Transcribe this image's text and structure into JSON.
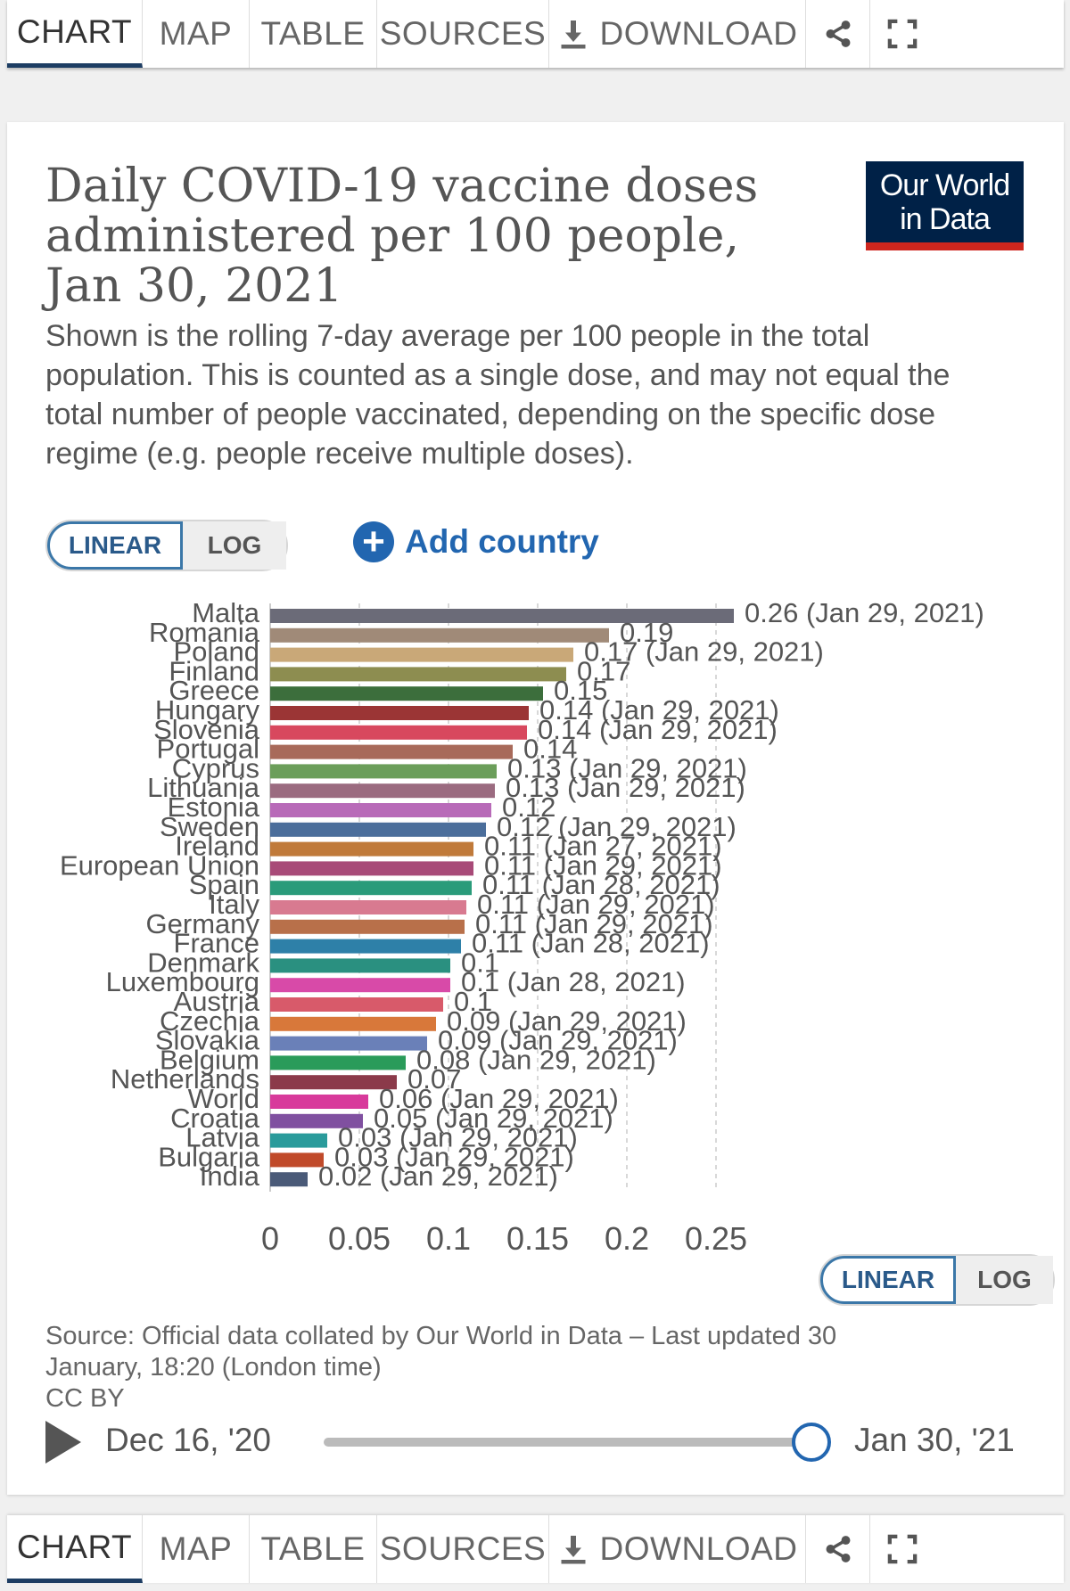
{
  "tabs": [
    {
      "label": "CHART",
      "active": true
    },
    {
      "label": "MAP",
      "active": false
    },
    {
      "label": "TABLE",
      "active": false
    },
    {
      "label": "SOURCES",
      "active": false
    },
    {
      "label": "DOWNLOAD",
      "active": false
    }
  ],
  "icons": {
    "download": "download-icon",
    "share": "share-icon",
    "fullscreen": "fullscreen-icon",
    "play": "play-icon",
    "add": "plus-circle-icon"
  },
  "title": "Daily COVID-19 vaccine doses administered per 100 people, Jan 30, 2021",
  "subtitle": "Shown is the rolling 7-day average per 100 people in the total population. This is counted as a single dose, and may not equal the total number of people vaccinated, depending on the specific dose regime (e.g. people receive multiple doses).",
  "logo": {
    "line1": "Our World",
    "line2": "in Data"
  },
  "scale_toggle": {
    "linear": "LINEAR",
    "log": "LOG",
    "selected": "LINEAR"
  },
  "add_country": "Add country",
  "source": {
    "text": "Source: Official data collated by Our World in Data – Last updated 30 January, 18:20 (London time)",
    "license": "CC BY"
  },
  "timeline": {
    "start": "Dec 16, '20",
    "end": "Jan 30, '21"
  },
  "colors": {
    "navy": "#002147",
    "red": "#ce261e",
    "accent": "#2266b0"
  },
  "chart_data": {
    "type": "bar",
    "orientation": "horizontal",
    "xlim": [
      0,
      0.26
    ],
    "x_ticks": [
      "0",
      "0.05",
      "0.1",
      "0.15",
      "0.2",
      "0.25"
    ],
    "grid": true,
    "bars": [
      {
        "country": "Malta",
        "value": 0.26,
        "label": "0.26 (Jan 29, 2021)",
        "color": "#6b6b78"
      },
      {
        "country": "Romania",
        "value": 0.19,
        "label": "0.19",
        "color": "#a08a78"
      },
      {
        "country": "Poland",
        "value": 0.17,
        "label": "0.17 (Jan 29, 2021)",
        "color": "#c9a878"
      },
      {
        "country": "Finland",
        "value": 0.166,
        "label": "0.17",
        "color": "#8d8d50"
      },
      {
        "country": "Greece",
        "value": 0.153,
        "label": "0.15",
        "color": "#3c6e3c"
      },
      {
        "country": "Hungary",
        "value": 0.145,
        "label": "0.14 (Jan 29, 2021)",
        "color": "#9b3535"
      },
      {
        "country": "Slovenia",
        "value": 0.144,
        "label": "0.14 (Jan 29, 2021)",
        "color": "#d8485e"
      },
      {
        "country": "Portugal",
        "value": 0.136,
        "label": "0.14",
        "color": "#a86a5a"
      },
      {
        "country": "Cyprus",
        "value": 0.127,
        "label": "0.13 (Jan 29, 2021)",
        "color": "#6b9e5a"
      },
      {
        "country": "Lithuania",
        "value": 0.126,
        "label": "0.13 (Jan 29, 2021)",
        "color": "#9b6b80"
      },
      {
        "country": "Estonia",
        "value": 0.124,
        "label": "0.12",
        "color": "#b86ab8"
      },
      {
        "country": "Sweden",
        "value": 0.121,
        "label": "0.12 (Jan 29, 2021)",
        "color": "#4b6e9b"
      },
      {
        "country": "Ireland",
        "value": 0.114,
        "label": "0.11 (Jan 27, 2021)",
        "color": "#c07a3a"
      },
      {
        "country": "European Union",
        "value": 0.114,
        "label": "0.11 (Jan 29, 2021)",
        "color": "#a84a78"
      },
      {
        "country": "Spain",
        "value": 0.113,
        "label": "0.11 (Jan 28, 2021)",
        "color": "#2a9b7a"
      },
      {
        "country": "Italy",
        "value": 0.11,
        "label": "0.11 (Jan 29, 2021)",
        "color": "#d87a90"
      },
      {
        "country": "Germany",
        "value": 0.109,
        "label": "0.11 (Jan 29, 2021)",
        "color": "#b8704a"
      },
      {
        "country": "France",
        "value": 0.107,
        "label": "0.11 (Jan 28, 2021)",
        "color": "#2e80a8"
      },
      {
        "country": "Denmark",
        "value": 0.101,
        "label": "0.1",
        "color": "#2a9080"
      },
      {
        "country": "Luxembourg",
        "value": 0.101,
        "label": "0.1 (Jan 28, 2021)",
        "color": "#d84aa8"
      },
      {
        "country": "Austria",
        "value": 0.097,
        "label": "0.1",
        "color": "#d85a6a"
      },
      {
        "country": "Czechia",
        "value": 0.093,
        "label": "0.09 (Jan 29, 2021)",
        "color": "#d8783a"
      },
      {
        "country": "Slovakia",
        "value": 0.088,
        "label": "0.09 (Jan 29, 2021)",
        "color": "#6a80b8"
      },
      {
        "country": "Belgium",
        "value": 0.076,
        "label": "0.08 (Jan 29, 2021)",
        "color": "#2a9b5a"
      },
      {
        "country": "Netherlands",
        "value": 0.071,
        "label": "0.07",
        "color": "#8b3a4a"
      },
      {
        "country": "World",
        "value": 0.055,
        "label": "0.06 (Jan 29, 2021)",
        "color": "#d83a9b"
      },
      {
        "country": "Croatia",
        "value": 0.052,
        "label": "0.05 (Jan 29, 2021)",
        "color": "#8050a0"
      },
      {
        "country": "Latvia",
        "value": 0.032,
        "label": "0.03 (Jan 29, 2021)",
        "color": "#2a9b9b"
      },
      {
        "country": "Bulgaria",
        "value": 0.03,
        "label": "0.03 (Jan 29, 2021)",
        "color": "#c04a2a"
      },
      {
        "country": "India",
        "value": 0.021,
        "label": "0.02 (Jan 29, 2021)",
        "color": "#4a5a78"
      }
    ]
  }
}
